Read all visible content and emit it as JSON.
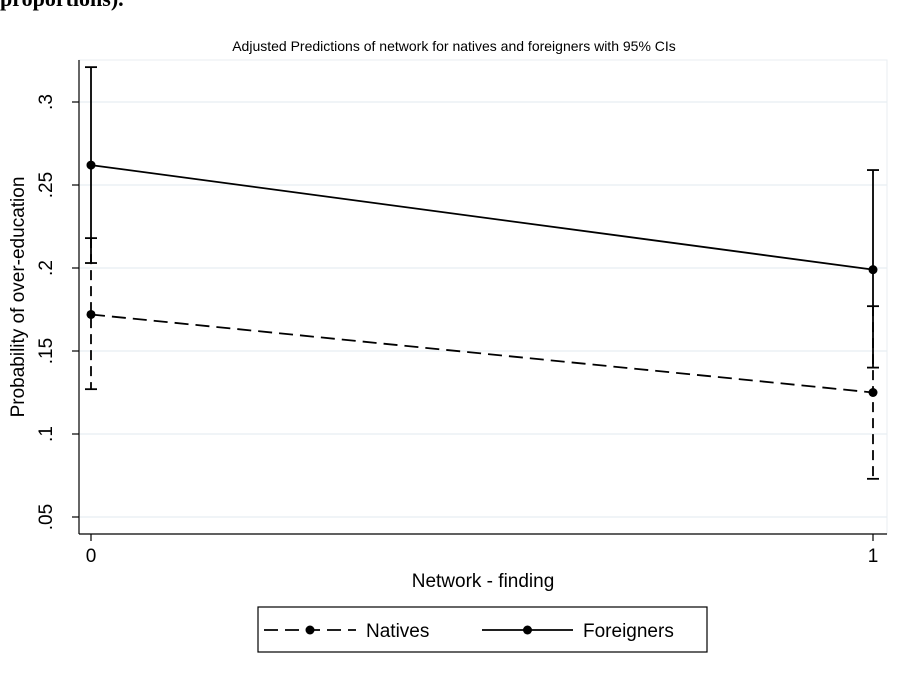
{
  "doc_fragment": "proportions).",
  "chart_data": {
    "type": "line",
    "title": "Adjusted Predictions of network for natives and foreigners with 95% CIs",
    "xlabel": "Network - finding",
    "ylabel": "Probability of over-education",
    "x": [
      0,
      1
    ],
    "x_ticks": [
      "0",
      "1"
    ],
    "y_ticks": [
      ".05",
      ".1",
      ".15",
      ".2",
      ".25",
      ".3"
    ],
    "y_tick_values": [
      0.05,
      0.1,
      0.15,
      0.2,
      0.25,
      0.3
    ],
    "ylim": [
      0.04,
      0.33
    ],
    "grid": true,
    "legend_placement": "bottom",
    "series": [
      {
        "name": "Natives",
        "style": "dashed",
        "values": [
          0.172,
          0.125
        ],
        "ci_lower": [
          0.127,
          0.073
        ],
        "ci_upper": [
          0.218,
          0.177
        ]
      },
      {
        "name": "Foreigners",
        "style": "solid",
        "values": [
          0.262,
          0.199
        ],
        "ci_lower": [
          0.203,
          0.14
        ],
        "ci_upper": [
          0.321,
          0.259
        ]
      }
    ]
  }
}
